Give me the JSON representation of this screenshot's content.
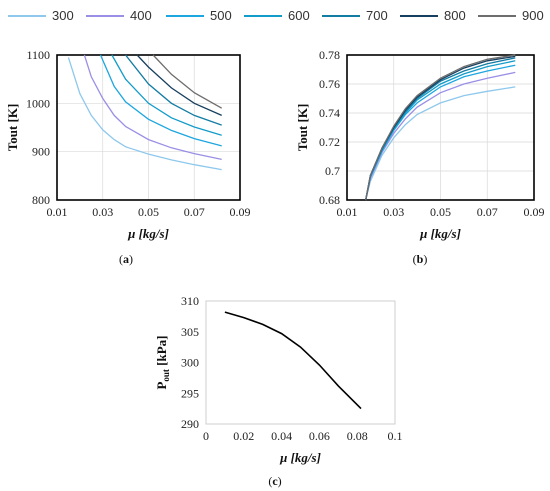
{
  "legend": [
    {
      "label": "300",
      "color": "#8EC8EC"
    },
    {
      "label": "400",
      "color": "#9A8FE6"
    },
    {
      "label": "500",
      "color": "#1EA6E0"
    },
    {
      "label": "600",
      "color": "#139CC9"
    },
    {
      "label": "700",
      "color": "#127CA3"
    },
    {
      "label": "800",
      "color": "#173F5F"
    },
    {
      "label": "900",
      "color": "#6D6D6D"
    }
  ],
  "panels": [
    {
      "caption_parts": [
        "(",
        "a",
        ")"
      ]
    },
    {
      "caption_parts": [
        "(",
        "b",
        ")"
      ]
    },
    {
      "caption_parts": [
        "(",
        "c",
        ")"
      ]
    }
  ],
  "chart_data": [
    {
      "type": "line",
      "caption": "(a)",
      "ylabel": "Tout [K]",
      "xlabel_symbol": "μ",
      "xlabel_unit": " [kg/s]",
      "xlim": [
        0.01,
        0.09
      ],
      "ylim": [
        800,
        1100
      ],
      "xticks": [
        "0.01",
        "0.03",
        "0.05",
        "0.07",
        "0.09"
      ],
      "yticks": [
        "800",
        "900",
        "1000",
        "1100"
      ],
      "grid": true,
      "series": [
        {
          "name": "300",
          "color": "#8EC8EC",
          "x": [
            0.015,
            0.02,
            0.025,
            0.03,
            0.035,
            0.04,
            0.05,
            0.06,
            0.07,
            0.082
          ],
          "y": [
            1095,
            1020,
            975,
            945,
            925,
            910,
            895,
            883,
            873,
            863
          ]
        },
        {
          "name": "400",
          "color": "#9A8FE6",
          "x": [
            0.022,
            0.025,
            0.03,
            0.035,
            0.04,
            0.05,
            0.06,
            0.07,
            0.082
          ],
          "y": [
            1100,
            1055,
            1010,
            975,
            952,
            925,
            908,
            896,
            884
          ]
        },
        {
          "name": "500",
          "color": "#1EA6E0",
          "x": [
            0.029,
            0.035,
            0.04,
            0.05,
            0.06,
            0.07,
            0.082
          ],
          "y": [
            1100,
            1035,
            1003,
            967,
            944,
            927,
            912
          ]
        },
        {
          "name": "600",
          "color": "#139CC9",
          "x": [
            0.034,
            0.04,
            0.05,
            0.06,
            0.07,
            0.082
          ],
          "y": [
            1100,
            1050,
            1000,
            970,
            951,
            934
          ]
        },
        {
          "name": "700",
          "color": "#127CA3",
          "x": [
            0.04,
            0.05,
            0.06,
            0.07,
            0.082
          ],
          "y": [
            1100,
            1040,
            1000,
            975,
            955
          ]
        },
        {
          "name": "800",
          "color": "#173F5F",
          "x": [
            0.045,
            0.05,
            0.06,
            0.07,
            0.082
          ],
          "y": [
            1100,
            1075,
            1032,
            1000,
            975
          ]
        },
        {
          "name": "900",
          "color": "#6D6D6D",
          "x": [
            0.052,
            0.06,
            0.07,
            0.082
          ],
          "y": [
            1100,
            1060,
            1022,
            990
          ]
        }
      ]
    },
    {
      "type": "line",
      "caption": "(b)",
      "ylabel": "Tout [K]",
      "xlabel_symbol": "μ",
      "xlabel_unit": " [kg/s]",
      "xlim": [
        0.01,
        0.09
      ],
      "ylim": [
        0.68,
        0.78
      ],
      "xticks": [
        "0.01",
        "0.03",
        "0.05",
        "0.07",
        "0.09"
      ],
      "yticks": [
        "0.68",
        "0.7",
        "0.72",
        "0.74",
        "0.76",
        "0.78"
      ],
      "grid": true,
      "series": [
        {
          "name": "300",
          "color": "#8EC8EC",
          "x": [
            0.018,
            0.02,
            0.025,
            0.03,
            0.035,
            0.04,
            0.05,
            0.06,
            0.07,
            0.082
          ],
          "y": [
            0.68,
            0.693,
            0.711,
            0.723,
            0.732,
            0.739,
            0.747,
            0.752,
            0.755,
            0.758
          ]
        },
        {
          "name": "400",
          "color": "#9A8FE6",
          "x": [
            0.018,
            0.02,
            0.025,
            0.03,
            0.035,
            0.04,
            0.05,
            0.06,
            0.07,
            0.082
          ],
          "y": [
            0.68,
            0.695,
            0.713,
            0.726,
            0.736,
            0.744,
            0.754,
            0.76,
            0.764,
            0.768
          ]
        },
        {
          "name": "500",
          "color": "#1EA6E0",
          "x": [
            0.018,
            0.02,
            0.025,
            0.03,
            0.035,
            0.04,
            0.05,
            0.06,
            0.07,
            0.082
          ],
          "y": [
            0.68,
            0.696,
            0.714,
            0.728,
            0.739,
            0.747,
            0.758,
            0.765,
            0.769,
            0.773
          ]
        },
        {
          "name": "600",
          "color": "#139CC9",
          "x": [
            0.018,
            0.02,
            0.025,
            0.03,
            0.035,
            0.04,
            0.05,
            0.06,
            0.07,
            0.082
          ],
          "y": [
            0.68,
            0.696,
            0.715,
            0.729,
            0.74,
            0.749,
            0.76,
            0.767,
            0.772,
            0.776
          ]
        },
        {
          "name": "700",
          "color": "#127CA3",
          "x": [
            0.018,
            0.02,
            0.025,
            0.03,
            0.035,
            0.04,
            0.05,
            0.06,
            0.07,
            0.082
          ],
          "y": [
            0.68,
            0.697,
            0.715,
            0.73,
            0.741,
            0.75,
            0.762,
            0.769,
            0.774,
            0.778
          ]
        },
        {
          "name": "800",
          "color": "#173F5F",
          "x": [
            0.018,
            0.02,
            0.025,
            0.03,
            0.035,
            0.04,
            0.05,
            0.06,
            0.07,
            0.082
          ],
          "y": [
            0.68,
            0.697,
            0.716,
            0.73,
            0.742,
            0.751,
            0.763,
            0.771,
            0.776,
            0.779
          ]
        },
        {
          "name": "900",
          "color": "#6D6D6D",
          "x": [
            0.018,
            0.02,
            0.025,
            0.03,
            0.035,
            0.04,
            0.05,
            0.06,
            0.07,
            0.082
          ],
          "y": [
            0.68,
            0.697,
            0.716,
            0.731,
            0.743,
            0.752,
            0.764,
            0.772,
            0.777,
            0.78
          ]
        }
      ]
    },
    {
      "type": "line",
      "caption": "(c)",
      "ylabel_main": "P",
      "ylabel_sub": "out",
      "ylabel_unit": " [kPa]",
      "xlabel_symbol": "μ",
      "xlabel_unit": " [kg/s]",
      "xlim": [
        0,
        0.1
      ],
      "ylim": [
        290,
        310
      ],
      "xticks": [
        "0",
        "0.02",
        "0.04",
        "0.06",
        "0.08",
        "0.1"
      ],
      "yticks": [
        "290",
        "295",
        "300",
        "305",
        "310"
      ],
      "grid": false,
      "series": [
        {
          "color": "#000000",
          "x": [
            0.01,
            0.02,
            0.03,
            0.04,
            0.05,
            0.06,
            0.07,
            0.082
          ],
          "y": [
            308.2,
            307.3,
            306.2,
            304.7,
            302.5,
            299.6,
            296.2,
            292.5
          ]
        }
      ]
    }
  ]
}
